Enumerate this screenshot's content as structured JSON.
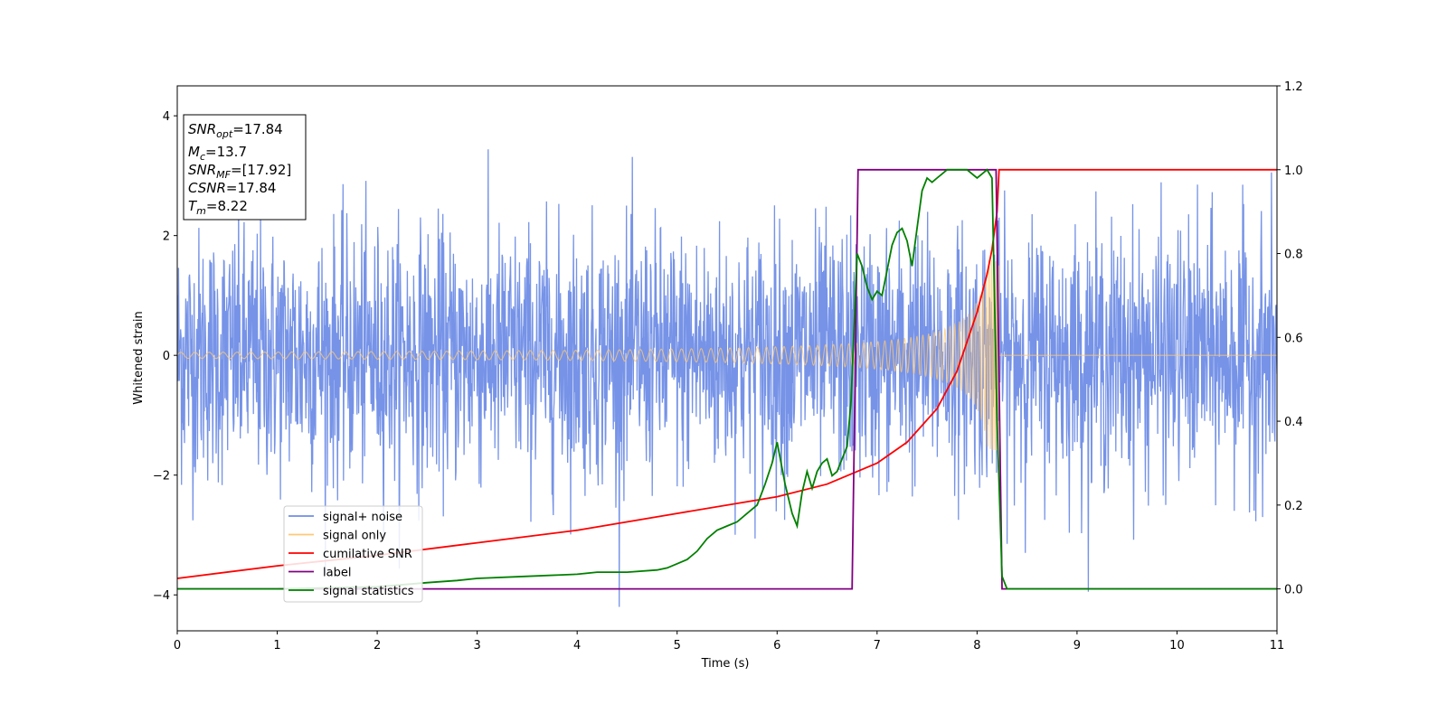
{
  "chart_data": {
    "type": "line",
    "xlabel": "Time (s)",
    "ylabel": "Whitened strain",
    "xlim": [
      0,
      11
    ],
    "ylim_left": [
      -4.6,
      4.5
    ],
    "ylim_right": [
      -0.1,
      1.2
    ],
    "x_ticks": [
      "0",
      "1",
      "2",
      "3",
      "4",
      "5",
      "6",
      "7",
      "8",
      "9",
      "10",
      "11"
    ],
    "y_ticks_left": [
      "−4",
      "−2",
      "0",
      "2",
      "4"
    ],
    "y_ticks_right": [
      "0.0",
      "0.2",
      "0.4",
      "0.6",
      "0.8",
      "1.0",
      "1.2"
    ],
    "legend_position": "lower-left",
    "legend": [
      {
        "label": "signal+ noise",
        "color": "#6f8de6"
      },
      {
        "label": "signal only",
        "color": "#ffc876"
      },
      {
        "label": "cumilative SNR",
        "color": "#ff0000"
      },
      {
        "label": "label",
        "color": "#800080"
      },
      {
        "label": "signal statistics",
        "color": "#008000"
      }
    ],
    "annotation": {
      "snr_opt_main": "SNR",
      "snr_opt_sub": "opt",
      "snr_opt_value": "=17.84",
      "mc_main": "M",
      "mc_sub": "c",
      "mc_value": "=13.7",
      "snr_mf_main": "SNR",
      "snr_mf_sub": "MF",
      "snr_mf_value": "=[17.92]",
      "csnr_main": "CSNR",
      "csnr_value": "=17.84",
      "tm_main": "T",
      "tm_sub": "m",
      "tm_value": "=8.22"
    },
    "series": [
      {
        "name": "signal+ noise",
        "axis": "left",
        "style": "noise",
        "noise_std": 1.05,
        "x_range": [
          0,
          11
        ]
      },
      {
        "name": "signal only",
        "axis": "left",
        "style": "chirp",
        "merger_time": 8.22,
        "amplitude_start": 0.05,
        "amplitude_peak": 1.6
      },
      {
        "name": "cumilative SNR",
        "axis": "right",
        "x": [
          0,
          1,
          2,
          3,
          4,
          5,
          6,
          6.5,
          7,
          7.3,
          7.6,
          7.8,
          8.0,
          8.1,
          8.15,
          8.2,
          8.22,
          11
        ],
        "y": [
          0.025,
          0.055,
          0.08,
          0.11,
          0.14,
          0.18,
          0.22,
          0.25,
          0.3,
          0.35,
          0.43,
          0.52,
          0.66,
          0.75,
          0.81,
          0.9,
          1.0,
          1.0
        ]
      },
      {
        "name": "label",
        "axis": "right",
        "x": [
          0,
          6.75,
          6.81,
          8.19,
          8.25,
          11
        ],
        "y": [
          0.0,
          0.0,
          1.0,
          1.0,
          0.0,
          0.0
        ]
      },
      {
        "name": "signal statistics",
        "axis": "right",
        "x": [
          0,
          1,
          2,
          2.5,
          2.8,
          3,
          3.5,
          4,
          4.2,
          4.5,
          4.8,
          4.9,
          5.0,
          5.1,
          5.2,
          5.3,
          5.4,
          5.5,
          5.6,
          5.7,
          5.8,
          5.88,
          5.95,
          6.0,
          6.08,
          6.15,
          6.2,
          6.25,
          6.3,
          6.35,
          6.4,
          6.45,
          6.5,
          6.55,
          6.6,
          6.65,
          6.7,
          6.74,
          6.8,
          6.85,
          6.9,
          6.95,
          7.0,
          7.05,
          7.1,
          7.15,
          7.2,
          7.25,
          7.3,
          7.35,
          7.4,
          7.45,
          7.5,
          7.55,
          7.6,
          7.65,
          7.7,
          7.8,
          7.9,
          8.0,
          8.05,
          8.1,
          8.15,
          8.2,
          8.25,
          8.3,
          11
        ],
        "y": [
          0.0,
          0.0,
          0.005,
          0.015,
          0.02,
          0.025,
          0.03,
          0.035,
          0.04,
          0.04,
          0.045,
          0.05,
          0.06,
          0.07,
          0.09,
          0.12,
          0.14,
          0.15,
          0.16,
          0.18,
          0.2,
          0.25,
          0.3,
          0.35,
          0.25,
          0.18,
          0.15,
          0.23,
          0.28,
          0.24,
          0.28,
          0.3,
          0.31,
          0.27,
          0.28,
          0.31,
          0.34,
          0.45,
          0.8,
          0.77,
          0.72,
          0.69,
          0.71,
          0.7,
          0.76,
          0.82,
          0.85,
          0.86,
          0.83,
          0.77,
          0.86,
          0.95,
          0.98,
          0.97,
          0.98,
          0.99,
          1.0,
          1.0,
          1.0,
          0.98,
          0.99,
          1.0,
          0.98,
          0.4,
          0.03,
          0.0,
          0.0
        ]
      }
    ]
  }
}
